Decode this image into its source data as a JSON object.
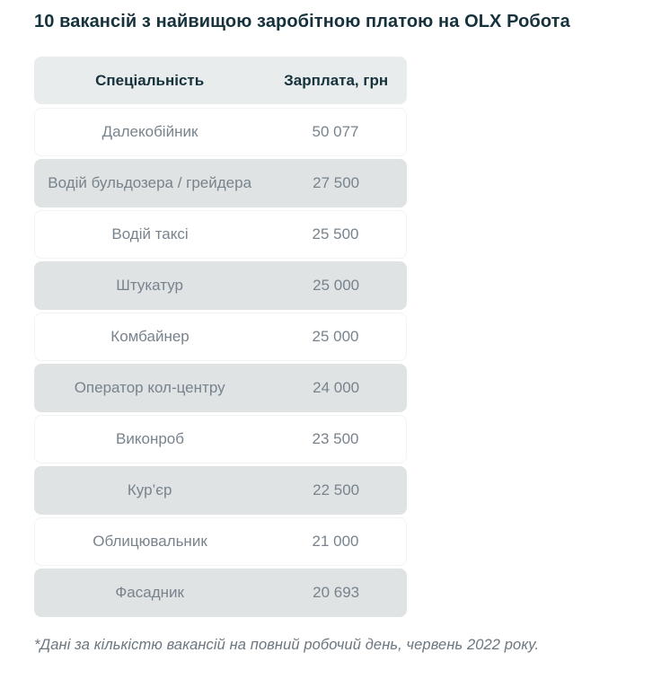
{
  "page": {
    "title": "10 вакансій з найвищою заробітною платою на OLX Робота",
    "footnote": "*Дані за кількістю вакансій на повний робочий день, червень 2022 року."
  },
  "table": {
    "headers": {
      "specialty": "Спеціальність",
      "salary": "Зарплата, грн"
    },
    "rows": [
      {
        "specialty": "Далекобійник",
        "salary": "50 077"
      },
      {
        "specialty": "Водій бульдозера / грейдера",
        "salary": "27 500"
      },
      {
        "specialty": "Водій таксі",
        "salary": "25 500"
      },
      {
        "specialty": "Штукатур",
        "salary": "25 000"
      },
      {
        "specialty": "Комбайнер",
        "salary": "25 000"
      },
      {
        "specialty": "Оператор кол-центру",
        "salary": "24 000"
      },
      {
        "specialty": "Виконроб",
        "salary": "23 500"
      },
      {
        "specialty": "Кур’єр",
        "salary": "22 500"
      },
      {
        "specialty": "Облицювальник",
        "salary": "21 000"
      },
      {
        "specialty": "Фасадник",
        "salary": "20 693"
      }
    ]
  },
  "colors": {
    "title_text": "#16323c",
    "header_bg": "#e9eced",
    "row_alt_bg": "#dfe3e4",
    "cell_text": "#78838d",
    "footnote_text": "#6b767f"
  },
  "chart_data": {
    "type": "table",
    "title": "10 вакансій з найвищою заробітною платою на OLX Робота",
    "columns": [
      "Спеціальність",
      "Зарплата, грн"
    ],
    "rows": [
      [
        "Далекобійник",
        50077
      ],
      [
        "Водій бульдозера / грейдера",
        27500
      ],
      [
        "Водій таксі",
        25500
      ],
      [
        "Штукатур",
        25000
      ],
      [
        "Комбайнер",
        25000
      ],
      [
        "Оператор кол-центру",
        24000
      ],
      [
        "Виконроб",
        23500
      ],
      [
        "Кур’єр",
        22500
      ],
      [
        "Облицювальник",
        21000
      ],
      [
        "Фасадник",
        20693
      ]
    ],
    "salary_unit": "грн",
    "footnote": "*Дані за кількістю вакансій на повний робочий день, червень 2022 року.",
    "layout": {
      "row_striping": "alternating",
      "cell_alignment": "center"
    }
  }
}
